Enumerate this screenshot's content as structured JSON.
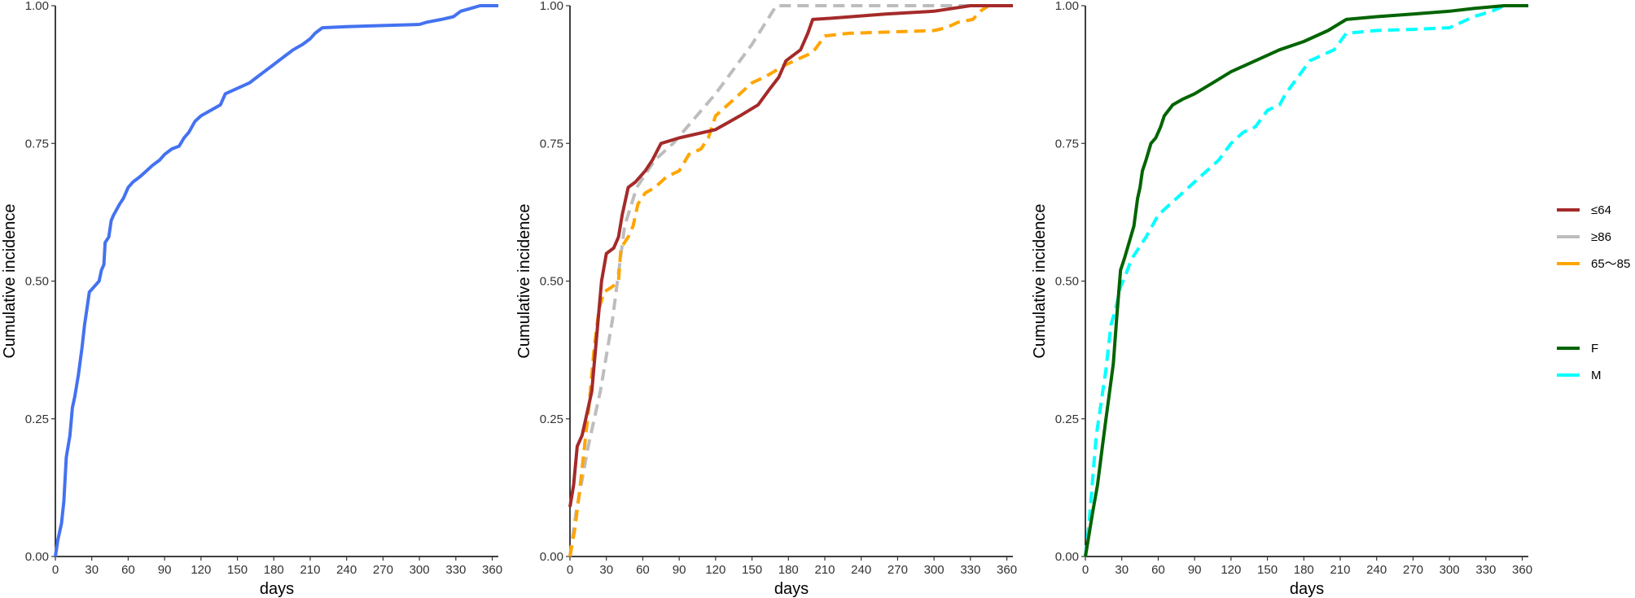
{
  "chart_data": [
    {
      "type": "line",
      "xlabel": "days",
      "ylabel": "Cumulative incidence",
      "xlim": [
        0,
        365
      ],
      "ylim": [
        0,
        1
      ],
      "x_ticks": [
        "0",
        "30",
        "60",
        "90",
        "120",
        "150",
        "180",
        "210",
        "240",
        "270",
        "300",
        "330",
        "360"
      ],
      "y_ticks": [
        "0.00",
        "0.25",
        "0.50",
        "0.75",
        "1.00"
      ],
      "grid": false,
      "series": [
        {
          "color": "#4472f0",
          "dash": "solid",
          "points": [
            [
              0,
              0
            ],
            [
              2,
              0.03
            ],
            [
              5,
              0.06
            ],
            [
              7,
              0.1
            ],
            [
              9,
              0.18
            ],
            [
              12,
              0.22
            ],
            [
              14,
              0.27
            ],
            [
              16,
              0.29
            ],
            [
              19,
              0.33
            ],
            [
              22,
              0.38
            ],
            [
              24,
              0.42
            ],
            [
              26,
              0.45
            ],
            [
              28,
              0.48
            ],
            [
              32,
              0.49
            ],
            [
              36,
              0.5
            ],
            [
              38,
              0.52
            ],
            [
              40,
              0.53
            ],
            [
              41,
              0.57
            ],
            [
              44,
              0.58
            ],
            [
              46,
              0.61
            ],
            [
              48,
              0.62
            ],
            [
              53,
              0.64
            ],
            [
              56,
              0.65
            ],
            [
              60,
              0.67
            ],
            [
              64,
              0.68
            ],
            [
              70,
              0.69
            ],
            [
              75,
              0.7
            ],
            [
              80,
              0.71
            ],
            [
              86,
              0.72
            ],
            [
              90,
              0.73
            ],
            [
              96,
              0.74
            ],
            [
              102,
              0.745
            ],
            [
              106,
              0.76
            ],
            [
              110,
              0.77
            ],
            [
              115,
              0.79
            ],
            [
              120,
              0.8
            ],
            [
              128,
              0.81
            ],
            [
              136,
              0.82
            ],
            [
              140,
              0.84
            ],
            [
              145,
              0.845
            ],
            [
              150,
              0.85
            ],
            [
              160,
              0.86
            ],
            [
              166,
              0.87
            ],
            [
              172,
              0.88
            ],
            [
              178,
              0.89
            ],
            [
              184,
              0.9
            ],
            [
              190,
              0.91
            ],
            [
              196,
              0.92
            ],
            [
              204,
              0.93
            ],
            [
              210,
              0.94
            ],
            [
              214,
              0.95
            ],
            [
              220,
              0.96
            ],
            [
              240,
              0.962
            ],
            [
              270,
              0.964
            ],
            [
              300,
              0.966
            ],
            [
              306,
              0.97
            ],
            [
              318,
              0.975
            ],
            [
              328,
              0.98
            ],
            [
              334,
              0.99
            ],
            [
              342,
              0.995
            ],
            [
              350,
              1.0
            ],
            [
              365,
              1.0
            ]
          ]
        }
      ]
    },
    {
      "type": "line",
      "xlabel": "days",
      "ylabel": "Cumulative incidence",
      "xlim": [
        0,
        365
      ],
      "ylim": [
        0,
        1
      ],
      "x_ticks": [
        "0",
        "30",
        "60",
        "90",
        "120",
        "150",
        "180",
        "210",
        "240",
        "270",
        "300",
        "330",
        "360"
      ],
      "y_ticks": [
        "0.00",
        "0.25",
        "0.50",
        "0.75",
        "1.00"
      ],
      "grid": false,
      "series": [
        {
          "name": "≥86",
          "color": "#bdbdbd",
          "dash": "dashed",
          "points": [
            [
              0,
              0
            ],
            [
              5,
              0.08
            ],
            [
              15,
              0.2
            ],
            [
              25,
              0.3
            ],
            [
              35,
              0.43
            ],
            [
              45,
              0.6
            ],
            [
              55,
              0.67
            ],
            [
              70,
              0.72
            ],
            [
              85,
              0.75
            ],
            [
              120,
              0.84
            ],
            [
              150,
              0.93
            ],
            [
              170,
              1.0
            ],
            [
              345,
              1.0
            ],
            [
              365,
              1.0
            ]
          ]
        },
        {
          "name": "65～85",
          "color": "#ffa500",
          "dash": "dashed",
          "points": [
            [
              0,
              0
            ],
            [
              4,
              0.05
            ],
            [
              8,
              0.12
            ],
            [
              12,
              0.2
            ],
            [
              16,
              0.28
            ],
            [
              20,
              0.38
            ],
            [
              24,
              0.45
            ],
            [
              28,
              0.48
            ],
            [
              35,
              0.49
            ],
            [
              40,
              0.5
            ],
            [
              42,
              0.56
            ],
            [
              48,
              0.58
            ],
            [
              52,
              0.6
            ],
            [
              56,
              0.64
            ],
            [
              62,
              0.66
            ],
            [
              70,
              0.67
            ],
            [
              80,
              0.69
            ],
            [
              90,
              0.7
            ],
            [
              98,
              0.73
            ],
            [
              108,
              0.74
            ],
            [
              114,
              0.76
            ],
            [
              120,
              0.8
            ],
            [
              130,
              0.82
            ],
            [
              140,
              0.84
            ],
            [
              150,
              0.86
            ],
            [
              160,
              0.87
            ],
            [
              168,
              0.88
            ],
            [
              175,
              0.89
            ],
            [
              185,
              0.9
            ],
            [
              200,
              0.915
            ],
            [
              210,
              0.945
            ],
            [
              230,
              0.95
            ],
            [
              260,
              0.952
            ],
            [
              300,
              0.955
            ],
            [
              310,
              0.96
            ],
            [
              320,
              0.97
            ],
            [
              332,
              0.975
            ],
            [
              338,
              0.99
            ],
            [
              345,
              1.0
            ],
            [
              365,
              1.0
            ]
          ]
        },
        {
          "name": "≤64",
          "color": "#a52a2a",
          "dash": "solid",
          "points": [
            [
              0,
              0.09
            ],
            [
              3,
              0.13
            ],
            [
              6,
              0.2
            ],
            [
              10,
              0.22
            ],
            [
              14,
              0.26
            ],
            [
              18,
              0.3
            ],
            [
              22,
              0.4
            ],
            [
              26,
              0.5
            ],
            [
              30,
              0.55
            ],
            [
              36,
              0.56
            ],
            [
              40,
              0.58
            ],
            [
              43,
              0.62
            ],
            [
              48,
              0.67
            ],
            [
              54,
              0.68
            ],
            [
              62,
              0.7
            ],
            [
              68,
              0.72
            ],
            [
              75,
              0.75
            ],
            [
              90,
              0.76
            ],
            [
              120,
              0.775
            ],
            [
              140,
              0.8
            ],
            [
              155,
              0.82
            ],
            [
              165,
              0.85
            ],
            [
              172,
              0.87
            ],
            [
              178,
              0.9
            ],
            [
              190,
              0.92
            ],
            [
              196,
              0.95
            ],
            [
              200,
              0.975
            ],
            [
              220,
              0.978
            ],
            [
              260,
              0.985
            ],
            [
              300,
              0.99
            ],
            [
              330,
              1.0
            ],
            [
              365,
              1.0
            ]
          ]
        }
      ]
    },
    {
      "type": "line",
      "xlabel": "days",
      "ylabel": "Cumulative incidence",
      "xlim": [
        0,
        365
      ],
      "ylim": [
        0,
        1
      ],
      "x_ticks": [
        "0",
        "30",
        "60",
        "90",
        "120",
        "150",
        "180",
        "210",
        "240",
        "270",
        "300",
        "330",
        "360"
      ],
      "y_ticks": [
        "0.00",
        "0.25",
        "0.50",
        "0.75",
        "1.00"
      ],
      "grid": false,
      "series": [
        {
          "name": "M",
          "color": "#00ffff",
          "dash": "dashed",
          "points": [
            [
              0,
              0
            ],
            [
              3,
              0.06
            ],
            [
              6,
              0.14
            ],
            [
              9,
              0.22
            ],
            [
              13,
              0.28
            ],
            [
              17,
              0.34
            ],
            [
              21,
              0.42
            ],
            [
              25,
              0.45
            ],
            [
              29,
              0.49
            ],
            [
              33,
              0.51
            ],
            [
              38,
              0.54
            ],
            [
              44,
              0.56
            ],
            [
              50,
              0.58
            ],
            [
              55,
              0.6
            ],
            [
              60,
              0.62
            ],
            [
              70,
              0.64
            ],
            [
              80,
              0.66
            ],
            [
              90,
              0.68
            ],
            [
              100,
              0.7
            ],
            [
              110,
              0.72
            ],
            [
              120,
              0.75
            ],
            [
              130,
              0.77
            ],
            [
              140,
              0.78
            ],
            [
              150,
              0.81
            ],
            [
              160,
              0.82
            ],
            [
              165,
              0.84
            ],
            [
              175,
              0.87
            ],
            [
              185,
              0.9
            ],
            [
              195,
              0.91
            ],
            [
              205,
              0.92
            ],
            [
              215,
              0.95
            ],
            [
              240,
              0.955
            ],
            [
              270,
              0.957
            ],
            [
              300,
              0.96
            ],
            [
              310,
              0.97
            ],
            [
              320,
              0.98
            ],
            [
              335,
              0.99
            ],
            [
              345,
              1.0
            ],
            [
              365,
              1.0
            ]
          ]
        },
        {
          "name": "F",
          "color": "#006400",
          "dash": "solid",
          "points": [
            [
              0,
              0
            ],
            [
              3,
              0.04
            ],
            [
              6,
              0.08
            ],
            [
              10,
              0.13
            ],
            [
              14,
              0.2
            ],
            [
              17,
              0.25
            ],
            [
              20,
              0.3
            ],
            [
              23,
              0.35
            ],
            [
              26,
              0.44
            ],
            [
              29,
              0.52
            ],
            [
              32,
              0.54
            ],
            [
              36,
              0.57
            ],
            [
              40,
              0.6
            ],
            [
              43,
              0.65
            ],
            [
              45,
              0.67
            ],
            [
              47,
              0.7
            ],
            [
              50,
              0.72
            ],
            [
              54,
              0.75
            ],
            [
              58,
              0.76
            ],
            [
              62,
              0.78
            ],
            [
              65,
              0.8
            ],
            [
              72,
              0.82
            ],
            [
              80,
              0.83
            ],
            [
              90,
              0.84
            ],
            [
              105,
              0.86
            ],
            [
              120,
              0.88
            ],
            [
              140,
              0.9
            ],
            [
              160,
              0.92
            ],
            [
              180,
              0.935
            ],
            [
              200,
              0.955
            ],
            [
              215,
              0.975
            ],
            [
              240,
              0.98
            ],
            [
              270,
              0.985
            ],
            [
              300,
              0.99
            ],
            [
              320,
              0.995
            ],
            [
              345,
              1.0
            ],
            [
              365,
              1.0
            ]
          ]
        }
      ]
    }
  ],
  "legend": {
    "groups": [
      [
        {
          "label": "≤64",
          "color": "#a52a2a"
        },
        {
          "label": "≥86",
          "color": "#bdbdbd"
        },
        {
          "label": "65～85",
          "color": "#ffa500"
        }
      ],
      [
        {
          "label": "F",
          "color": "#006400"
        },
        {
          "label": "M",
          "color": "#00ffff"
        }
      ]
    ]
  }
}
